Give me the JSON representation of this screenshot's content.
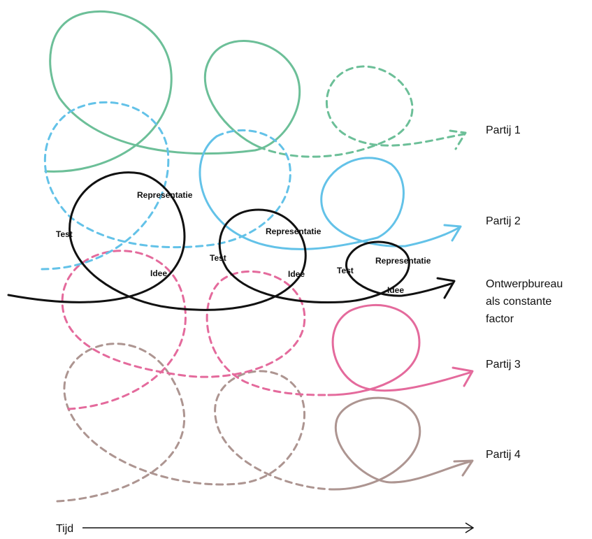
{
  "colors": {
    "partij_1": "#6cbf98",
    "partij_2": "#63c2e8",
    "ontwerpbureau": "#111111",
    "partij_3": "#e46a9c",
    "partij_4": "#ad9591"
  },
  "labels": {
    "partij_1": "Partij 1",
    "partij_2": "Partij 2",
    "ontwerpbureau": [
      "Ontwerpbureau",
      "als constante",
      "factor"
    ],
    "partij_3": "Partij 3",
    "partij_4": "Partij 4"
  },
  "loop_labels": [
    {
      "test": "Test",
      "representatie": "Representatie",
      "idee": "Idee"
    },
    {
      "test": "Test",
      "representatie": "Representatie",
      "idee": "Idee"
    },
    {
      "test": "Test",
      "representatie": "Representatie",
      "idee": "Idee"
    }
  ],
  "axis": {
    "label": "Tijd"
  }
}
